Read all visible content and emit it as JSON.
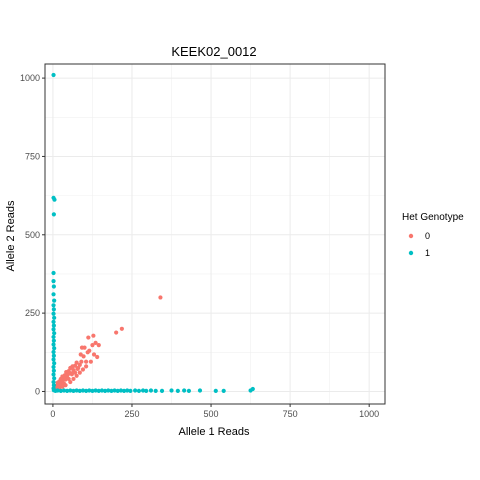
{
  "chart_data": {
    "type": "scatter",
    "title": "KEEK02_0012",
    "xlabel": "Allele 1 Reads",
    "ylabel": "Allele 2 Reads",
    "xlim": [
      -25,
      1050
    ],
    "ylim": [
      -40,
      1045
    ],
    "x_ticks": [
      0,
      250,
      500,
      750,
      1000
    ],
    "y_ticks": [
      0,
      250,
      500,
      750,
      1000
    ],
    "grid": true,
    "legend": {
      "title": "Het Genotype",
      "placement": "right",
      "entries": [
        {
          "label": "0",
          "color": "#F8766D"
        },
        {
          "label": "1",
          "color": "#00BFC4"
        }
      ]
    },
    "series": [
      {
        "name": "0",
        "color": "#F8766D",
        "points": [
          [
            340,
            300
          ],
          [
            218,
            200
          ],
          [
            200,
            188
          ],
          [
            128,
            178
          ],
          [
            112,
            172
          ],
          [
            135,
            155
          ],
          [
            145,
            148
          ],
          [
            125,
            148
          ],
          [
            100,
            140
          ],
          [
            92,
            140
          ],
          [
            115,
            130
          ],
          [
            110,
            125
          ],
          [
            88,
            118
          ],
          [
            97,
            112
          ],
          [
            130,
            118
          ],
          [
            105,
            95
          ],
          [
            90,
            95
          ],
          [
            75,
            92
          ],
          [
            85,
            85
          ],
          [
            70,
            82
          ],
          [
            62,
            80
          ],
          [
            55,
            75
          ],
          [
            78,
            72
          ],
          [
            65,
            68
          ],
          [
            50,
            65
          ],
          [
            42,
            62
          ],
          [
            58,
            58
          ],
          [
            48,
            55
          ],
          [
            38,
            52
          ],
          [
            30,
            48
          ],
          [
            45,
            45
          ],
          [
            35,
            42
          ],
          [
            25,
            40
          ],
          [
            40,
            38
          ],
          [
            30,
            35
          ],
          [
            20,
            32
          ],
          [
            15,
            28
          ],
          [
            28,
            28
          ],
          [
            22,
            25
          ],
          [
            35,
            25
          ],
          [
            18,
            20
          ],
          [
            12,
            18
          ],
          [
            25,
            18
          ],
          [
            10,
            12
          ],
          [
            20,
            12
          ],
          [
            15,
            8
          ],
          [
            30,
            15
          ],
          [
            40,
            20
          ],
          [
            55,
            30
          ],
          [
            65,
            40
          ],
          [
            75,
            50
          ],
          [
            85,
            60
          ],
          [
            95,
            70
          ],
          [
            105,
            80
          ],
          [
            120,
            95
          ],
          [
            140,
            110
          ],
          [
            60,
            55
          ],
          [
            80,
            75
          ],
          [
            50,
            40
          ],
          [
            70,
            60
          ]
        ]
      },
      {
        "name": "1",
        "color": "#00BFC4",
        "points": [
          [
            2,
            1010
          ],
          [
            2,
            618
          ],
          [
            5,
            612
          ],
          [
            3,
            565
          ],
          [
            2,
            378
          ],
          [
            2,
            352
          ],
          [
            3,
            335
          ],
          [
            2,
            310
          ],
          [
            4,
            290
          ],
          [
            2,
            275
          ],
          [
            3,
            262
          ],
          [
            2,
            248
          ],
          [
            4,
            235
          ],
          [
            2,
            222
          ],
          [
            3,
            210
          ],
          [
            2,
            198
          ],
          [
            4,
            186
          ],
          [
            2,
            174
          ],
          [
            3,
            162
          ],
          [
            2,
            150
          ],
          [
            4,
            138
          ],
          [
            2,
            126
          ],
          [
            3,
            114
          ],
          [
            2,
            102
          ],
          [
            4,
            90
          ],
          [
            2,
            78
          ],
          [
            3,
            66
          ],
          [
            2,
            54
          ],
          [
            4,
            42
          ],
          [
            2,
            30
          ],
          [
            3,
            20
          ],
          [
            2,
            10
          ],
          [
            3,
            4
          ],
          [
            8,
            2
          ],
          [
            15,
            3
          ],
          [
            25,
            2
          ],
          [
            35,
            3
          ],
          [
            45,
            2
          ],
          [
            55,
            3
          ],
          [
            65,
            2
          ],
          [
            75,
            3
          ],
          [
            85,
            2
          ],
          [
            95,
            3
          ],
          [
            105,
            2
          ],
          [
            115,
            3
          ],
          [
            125,
            2
          ],
          [
            135,
            3
          ],
          [
            145,
            2
          ],
          [
            155,
            3
          ],
          [
            165,
            2
          ],
          [
            175,
            3
          ],
          [
            185,
            2
          ],
          [
            195,
            3
          ],
          [
            205,
            2
          ],
          [
            215,
            3
          ],
          [
            225,
            2
          ],
          [
            235,
            3
          ],
          [
            245,
            2
          ],
          [
            260,
            3
          ],
          [
            272,
            2
          ],
          [
            285,
            3
          ],
          [
            295,
            2
          ],
          [
            310,
            3
          ],
          [
            325,
            2
          ],
          [
            345,
            2
          ],
          [
            375,
            3
          ],
          [
            395,
            2
          ],
          [
            415,
            3
          ],
          [
            430,
            2
          ],
          [
            465,
            3
          ],
          [
            515,
            2
          ],
          [
            540,
            2
          ],
          [
            625,
            3
          ],
          [
            632,
            8
          ]
        ]
      }
    ]
  }
}
